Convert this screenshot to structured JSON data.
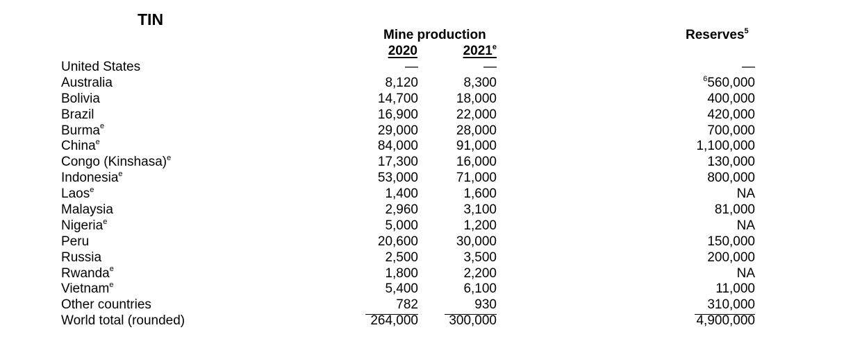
{
  "title": "TIN",
  "headers": {
    "mine_production": "Mine production",
    "year_2020": "2020",
    "year_2021": "2021",
    "year_2021_note": "e",
    "reserves": "Reserves",
    "reserves_note": "5"
  },
  "rows": [
    {
      "name": "United States",
      "note": "",
      "v2020": "—",
      "v2021": "—",
      "res_note": "",
      "reserves": "—"
    },
    {
      "name": "Australia",
      "note": "",
      "v2020": "8,120",
      "v2021": "8,300",
      "res_note": "6",
      "reserves": "560,000"
    },
    {
      "name": "Bolivia",
      "note": "",
      "v2020": "14,700",
      "v2021": "18,000",
      "res_note": "",
      "reserves": "400,000"
    },
    {
      "name": "Brazil",
      "note": "",
      "v2020": "16,900",
      "v2021": "22,000",
      "res_note": "",
      "reserves": "420,000"
    },
    {
      "name": "Burma",
      "note": "e",
      "v2020": "29,000",
      "v2021": "28,000",
      "res_note": "",
      "reserves": "700,000"
    },
    {
      "name": "China",
      "note": "e",
      "v2020": "84,000",
      "v2021": "91,000",
      "res_note": "",
      "reserves": "1,100,000"
    },
    {
      "name": "Congo (Kinshasa)",
      "note": "e",
      "v2020": "17,300",
      "v2021": "16,000",
      "res_note": "",
      "reserves": "130,000"
    },
    {
      "name": "Indonesia",
      "note": "e",
      "v2020": "53,000",
      "v2021": "71,000",
      "res_note": "",
      "reserves": "800,000"
    },
    {
      "name": "Laos",
      "note": "e",
      "v2020": "1,400",
      "v2021": "1,600",
      "res_note": "",
      "reserves": "NA"
    },
    {
      "name": "Malaysia",
      "note": "",
      "v2020": "2,960",
      "v2021": "3,100",
      "res_note": "",
      "reserves": "81,000"
    },
    {
      "name": "Nigeria",
      "note": "e",
      "v2020": "5,000",
      "v2021": "1,200",
      "res_note": "",
      "reserves": "NA"
    },
    {
      "name": "Peru",
      "note": "",
      "v2020": "20,600",
      "v2021": "30,000",
      "res_note": "",
      "reserves": "150,000"
    },
    {
      "name": "Russia",
      "note": "",
      "v2020": "2,500",
      "v2021": "3,500",
      "res_note": "",
      "reserves": "200,000"
    },
    {
      "name": "Rwanda",
      "note": "e",
      "v2020": "1,800",
      "v2021": "2,200",
      "res_note": "",
      "reserves": "NA"
    },
    {
      "name": "Vietnam",
      "note": "e",
      "v2020": "5,400",
      "v2021": "6,100",
      "res_note": "",
      "reserves": "11,000"
    },
    {
      "name": "Other countries",
      "note": "",
      "v2020": "782",
      "v2021": "930",
      "res_note": "",
      "reserves": "310,000"
    },
    {
      "name": "World total (rounded)",
      "note": "",
      "v2020": "264,000",
      "v2021": "300,000",
      "res_note": "",
      "reserves": "4,900,000"
    }
  ]
}
